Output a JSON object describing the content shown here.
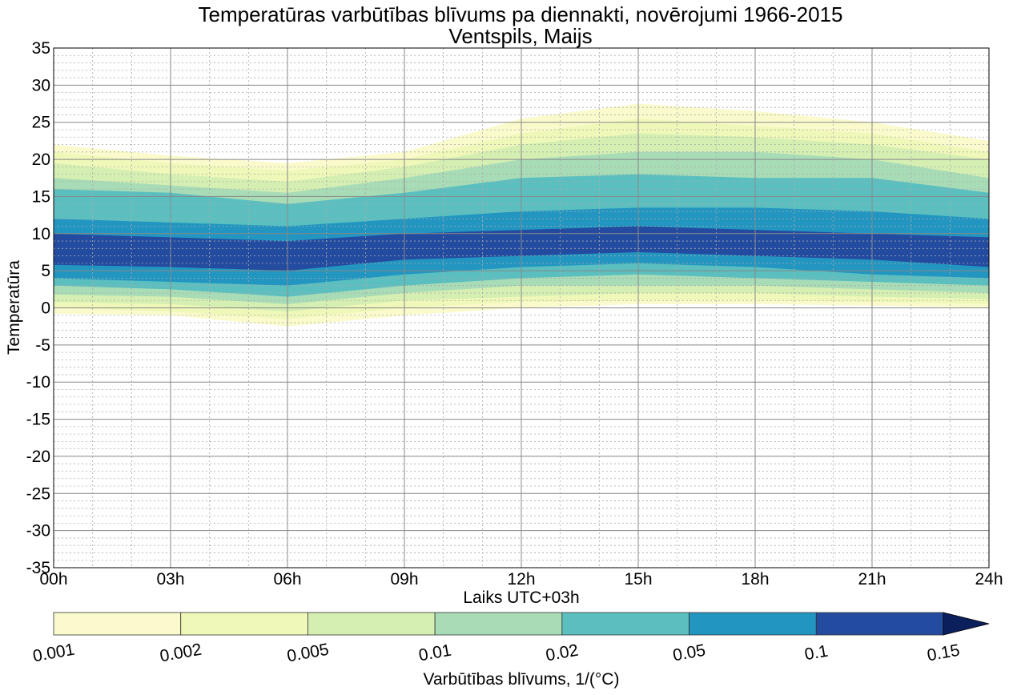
{
  "chart_data": {
    "type": "contourf",
    "title": "Temperatūras varbūtības blīvums pa diennakti, novērojumi 1966-2015",
    "subtitle": "Ventspils, Maijs",
    "xlabel": "Laiks UTC+03h",
    "ylabel": "Temperatūra",
    "xlim": [
      0,
      24
    ],
    "ylim": [
      -35,
      35
    ],
    "x_ticks": [
      0,
      3,
      6,
      9,
      12,
      15,
      18,
      21,
      24
    ],
    "x_tick_labels": [
      "00h",
      "03h",
      "06h",
      "09h",
      "12h",
      "15h",
      "18h",
      "21h",
      "24h"
    ],
    "y_ticks": [
      -35,
      -30,
      -25,
      -20,
      -15,
      -10,
      -5,
      0,
      5,
      10,
      15,
      20,
      25,
      30,
      35
    ],
    "y_tick_labels": [
      "-35",
      "-30",
      "-25",
      "-20",
      "-15",
      "-10",
      "-5",
      "0",
      "5",
      "10",
      "15",
      "20",
      "25",
      "30",
      "35"
    ],
    "grid": "major solid, minor dotted",
    "x_samples": [
      0,
      3,
      6,
      9,
      12,
      15,
      18,
      21,
      24
    ],
    "levels": [
      {
        "value": 0.001,
        "color": "#fafacc",
        "top": [
          22,
          20.5,
          19.5,
          21,
          25.5,
          27.5,
          26.5,
          25,
          22.5
        ],
        "bottom": [
          -0.8,
          -1,
          -2.5,
          -1,
          0,
          0.5,
          0.5,
          0.3,
          0
        ]
      },
      {
        "value": 0.002,
        "color": "#eff8b9",
        "top": [
          21,
          19.5,
          18.5,
          20,
          23.5,
          25.5,
          24.5,
          23.5,
          21
        ],
        "bottom": [
          0,
          -0.5,
          -1.5,
          0,
          0.8,
          1,
          1,
          0.8,
          0.5
        ]
      },
      {
        "value": 0.005,
        "color": "#d5efb3",
        "top": [
          19.5,
          18,
          17,
          19,
          22,
          23.5,
          23,
          22,
          20
        ],
        "bottom": [
          0.8,
          0.5,
          -0.5,
          1,
          1.5,
          2,
          2,
          1.5,
          1.2
        ]
      },
      {
        "value": 0.01,
        "color": "#a8dcb6",
        "top": [
          17.5,
          16.5,
          15.5,
          17.5,
          20,
          21,
          21,
          20,
          17.5
        ],
        "bottom": [
          1.8,
          1.5,
          0.5,
          2,
          3,
          3,
          3,
          2.5,
          2
        ]
      },
      {
        "value": 0.02,
        "color": "#5bbfc0",
        "top": [
          16,
          15.5,
          14,
          15.5,
          17.5,
          18,
          17.5,
          17.5,
          15.5
        ],
        "bottom": [
          3,
          2.5,
          1.5,
          3,
          4,
          4.5,
          4,
          3.5,
          3
        ]
      },
      {
        "value": 0.05,
        "color": "#2296c1",
        "top": [
          12,
          11.5,
          11,
          12,
          13,
          13.5,
          13.5,
          13,
          12
        ],
        "bottom": [
          4,
          3.5,
          3,
          4.5,
          5.5,
          6,
          5.5,
          4.5,
          4
        ]
      },
      {
        "value": 0.1,
        "color": "#234ca0",
        "top": [
          10,
          9.5,
          9,
          10,
          10.5,
          11,
          10.5,
          10,
          9.5
        ],
        "bottom": [
          5.8,
          5.5,
          5,
          6.5,
          7,
          7.5,
          7,
          6.5,
          5.5
        ]
      }
    ],
    "colorbar": {
      "label": "Varbūtības blīvums, 1/(°C)",
      "tick_labels": [
        "0.001",
        "0.002",
        "0.005",
        "0.01",
        "0.02",
        "0.05",
        "0.1",
        "0.15"
      ],
      "colors": [
        "#fafacc",
        "#eff8b9",
        "#d5efb3",
        "#a8dcb6",
        "#5bbfc0",
        "#2296c1",
        "#234ca0"
      ],
      "extend_color": "#0b1f5c",
      "extend": "max"
    }
  }
}
